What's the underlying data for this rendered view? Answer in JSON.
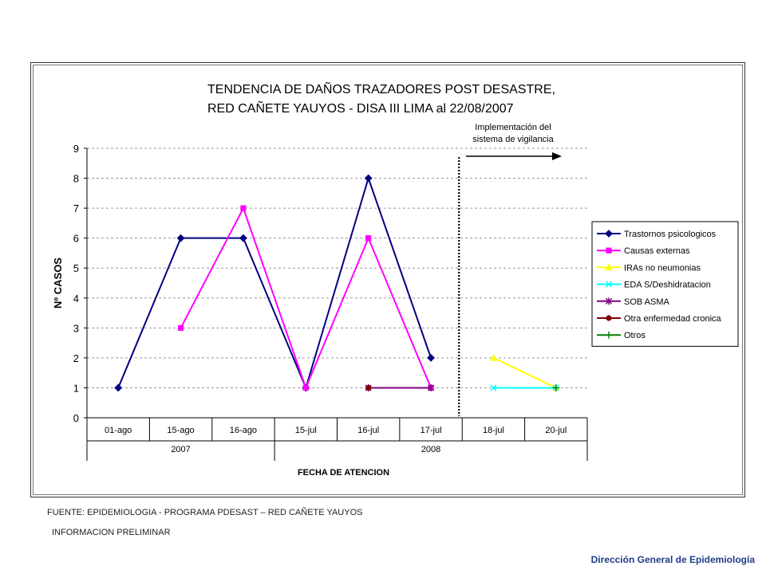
{
  "chart_data": {
    "type": "line",
    "title": "TENDENCIA DE DAÑOS TRAZADORES POST DESASTRE,",
    "subtitle": "RED CAÑETE YAUYOS - DISA III LIMA al 22/08/2007",
    "xlabel": "FECHA DE ATENCION",
    "ylabel": "Nº CASOS",
    "ylim": [
      0,
      9
    ],
    "yticks": [
      "0",
      "1",
      "2",
      "3",
      "4",
      "5",
      "6",
      "7",
      "8",
      "9"
    ],
    "grid": "horizontal dashed",
    "legend_position": "right",
    "categories": [
      "01-ago",
      "15-ago",
      "16-ago",
      "15-jul",
      "16-jul",
      "17-jul",
      "18-jul",
      "20-jul"
    ],
    "category_groups": [
      {
        "label": "2007",
        "span": 3
      },
      {
        "label": "2008",
        "span": 5
      }
    ],
    "annotation": {
      "lines": [
        "Implementación del",
        "sistema de vigilancia"
      ],
      "after_category": 5
    },
    "series": [
      {
        "name": "Trastornos psicologicos",
        "color": "#000080",
        "marker": "diamond",
        "values": [
          1,
          6,
          6,
          1,
          8,
          2,
          null,
          null
        ]
      },
      {
        "name": "Causas externas",
        "color": "#ff00ff",
        "marker": "square",
        "values": [
          null,
          3,
          7,
          1,
          6,
          1,
          null,
          null
        ]
      },
      {
        "name": "IRAs no neumonias",
        "color": "#ffff00",
        "marker": "triangle",
        "values": [
          null,
          null,
          null,
          null,
          null,
          null,
          2,
          1
        ]
      },
      {
        "name": "EDA S/Deshidratacion",
        "color": "#00ffff",
        "marker": "x",
        "values": [
          null,
          null,
          null,
          null,
          null,
          null,
          1,
          1
        ]
      },
      {
        "name": "SOB ASMA",
        "color": "#800080",
        "marker": "star",
        "values": [
          null,
          null,
          null,
          null,
          1,
          1,
          null,
          null
        ]
      },
      {
        "name": "Otra enfermedad cronica",
        "color": "#800000",
        "marker": "circle",
        "values": [
          null,
          null,
          null,
          null,
          1,
          null,
          null,
          null
        ]
      },
      {
        "name": "Otros",
        "color": "#008000",
        "marker": "plus",
        "values": [
          null,
          null,
          null,
          null,
          null,
          null,
          null,
          1
        ]
      }
    ]
  },
  "notes": {
    "source": "FUENTE:  EPIDEMIOLOGIA - PROGRAMA PDESAST – RED CAÑETE YAUYOS",
    "preliminary": "INFORMACION PRELIMINAR",
    "credit": "Dirección General de Epidemiología"
  }
}
